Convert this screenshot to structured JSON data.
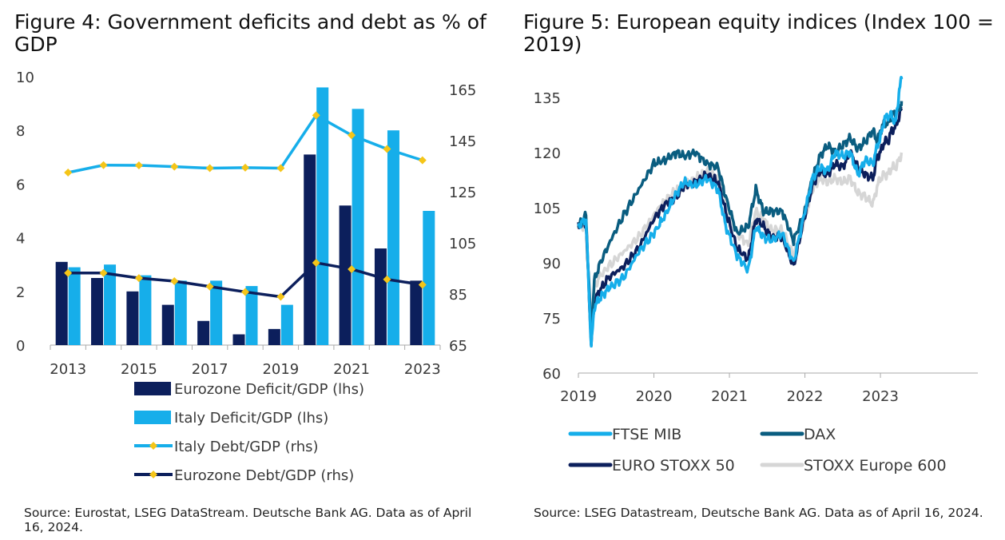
{
  "colors": {
    "navy": "#0c1f5c",
    "light_blue": "#16aeea",
    "dark_teal": "#0a5d80",
    "light_grey": "#d6d6d6",
    "marker": "#f5c518",
    "axis": "#aaaaaa"
  },
  "chart_data": [
    {
      "type": "bar",
      "title": "Figure 4: Government deficits and debt as % of GDP",
      "categories": [
        "2013",
        "2014",
        "2015",
        "2016",
        "2017",
        "2018",
        "2019",
        "2020",
        "2021",
        "2022",
        "2023"
      ],
      "x_tick_labels": [
        "2013",
        "2015",
        "2017",
        "2019",
        "2021",
        "2023"
      ],
      "y_left": {
        "lim": [
          0,
          10
        ],
        "ticks": [
          "0",
          "2",
          "4",
          "6",
          "8",
          "10"
        ]
      },
      "y_right": {
        "lim": [
          65,
          170
        ],
        "ticks": [
          "65",
          "85",
          "105",
          "125",
          "145",
          "165"
        ]
      },
      "series": [
        {
          "name": "Eurozone Deficit/GDP (lhs)",
          "kind": "bar",
          "axis": "left",
          "color": "#0c1f5c",
          "values": [
            3.1,
            2.5,
            2.0,
            1.5,
            0.9,
            0.4,
            0.6,
            7.1,
            5.2,
            3.6,
            2.4
          ]
        },
        {
          "name": "Italy Deficit/GDP (lhs)",
          "kind": "bar",
          "axis": "left",
          "color": "#16aeea",
          "values": [
            2.9,
            3.0,
            2.6,
            2.4,
            2.4,
            2.2,
            1.5,
            9.6,
            8.8,
            8.0,
            5.0
          ]
        },
        {
          "name": "Italy Debt/GDP (rhs)",
          "kind": "line",
          "axis": "right",
          "color": "#16aeea",
          "values": [
            132.5,
            135.4,
            135.3,
            134.8,
            134.2,
            134.4,
            134.2,
            154.9,
            147.1,
            141.7,
            137.3
          ]
        },
        {
          "name": "Eurozone Debt/GDP (rhs)",
          "kind": "line",
          "axis": "right",
          "color": "#0c1f5c",
          "values": [
            93.2,
            93.2,
            91.2,
            90.0,
            87.9,
            85.8,
            83.9,
            97.2,
            94.7,
            90.7,
            88.6
          ]
        }
      ],
      "source": "Source: Eurostat, LSEG DataStream. Deutsche Bank AG. Data as of April 16, 2024."
    },
    {
      "type": "line",
      "title": "Figure 5: European equity indices (Index 100 = 2019)",
      "x_tick_labels": [
        "2019",
        "2020",
        "2021",
        "2022",
        "2023"
      ],
      "xlim": [
        2019.0,
        2024.29
      ],
      "y": {
        "lim": [
          60,
          140
        ],
        "ticks": [
          "60",
          "75",
          "90",
          "105",
          "120",
          "135"
        ]
      },
      "series": [
        {
          "name": "FTSE MIB",
          "color": "#16aeea",
          "x": [
            2019.0,
            2019.1,
            2019.17,
            2019.21,
            2019.27,
            2019.4,
            2019.6,
            2019.8,
            2020.0,
            2020.15,
            2020.3,
            2020.4,
            2020.55,
            2020.7,
            2020.85,
            2020.95,
            2021.1,
            2021.25,
            2021.35,
            2021.45,
            2021.55,
            2021.7,
            2021.85,
            2022.0,
            2022.1,
            2022.2,
            2022.3,
            2022.4,
            2022.5,
            2022.6,
            2022.7,
            2022.8,
            2022.9,
            2022.96,
            2023.0,
            2023.05,
            2023.1,
            2023.15,
            2023.2,
            2023.25,
            2023.28
          ],
          "values": [
            100,
            102,
            67,
            78,
            80,
            83,
            86,
            93,
            98,
            103,
            109,
            112,
            111,
            113,
            110,
            100,
            92,
            88,
            100,
            97,
            96,
            98,
            90,
            104,
            113,
            116,
            115,
            120,
            119,
            120,
            114,
            118,
            117,
            122,
            124,
            129,
            130,
            130,
            128,
            137,
            140
          ]
        },
        {
          "name": "DAX",
          "color": "#0a5d80",
          "x": [
            2019.0,
            2019.1,
            2019.17,
            2019.21,
            2019.27,
            2019.4,
            2019.6,
            2019.8,
            2020.0,
            2020.15,
            2020.3,
            2020.4,
            2020.55,
            2020.7,
            2020.85,
            2020.95,
            2021.1,
            2021.25,
            2021.35,
            2021.45,
            2021.55,
            2021.7,
            2021.85,
            2022.0,
            2022.1,
            2022.2,
            2022.3,
            2022.4,
            2022.5,
            2022.6,
            2022.7,
            2022.8,
            2022.9,
            2022.96,
            2023.0,
            2023.05,
            2023.1,
            2023.15,
            2023.2,
            2023.25,
            2023.28
          ],
          "values": [
            100,
            103,
            70,
            85,
            89,
            95,
            103,
            110,
            117,
            118,
            120,
            119,
            120,
            117,
            116,
            108,
            98,
            100,
            110,
            104,
            104,
            104,
            96,
            104,
            113,
            119,
            122,
            120,
            122,
            124,
            121,
            123,
            126,
            123,
            126,
            128,
            128,
            130,
            131,
            132,
            134
          ]
        },
        {
          "name": "EURO STOXX 50",
          "color": "#0c1f5c",
          "x": [
            2019.0,
            2019.1,
            2019.17,
            2019.21,
            2019.27,
            2019.4,
            2019.6,
            2019.8,
            2020.0,
            2020.15,
            2020.3,
            2020.4,
            2020.55,
            2020.7,
            2020.85,
            2020.95,
            2021.1,
            2021.25,
            2021.35,
            2021.45,
            2021.55,
            2021.7,
            2021.85,
            2022.0,
            2022.1,
            2022.2,
            2022.3,
            2022.4,
            2022.5,
            2022.6,
            2022.7,
            2022.8,
            2022.9,
            2022.96,
            2023.0,
            2023.05,
            2023.1,
            2023.15,
            2023.2,
            2023.25,
            2023.28
          ],
          "values": [
            100,
            101,
            68,
            79,
            82,
            86,
            89,
            94,
            102,
            106,
            108,
            111,
            112,
            114,
            112,
            104,
            94,
            91,
            102,
            100,
            97,
            97,
            89,
            103,
            111,
            115,
            114,
            117,
            116,
            120,
            116,
            114,
            113,
            119,
            120,
            123,
            123,
            126,
            127,
            130,
            132
          ]
        },
        {
          "name": "STOXX Europe 600",
          "color": "#d6d6d6",
          "x": [
            2019.0,
            2019.1,
            2019.17,
            2019.21,
            2019.27,
            2019.4,
            2019.6,
            2019.8,
            2020.0,
            2020.15,
            2020.3,
            2020.4,
            2020.55,
            2020.7,
            2020.85,
            2020.95,
            2021.1,
            2021.25,
            2021.35,
            2021.45,
            2021.55,
            2021.7,
            2021.85,
            2022.0,
            2022.1,
            2022.2,
            2022.3,
            2022.4,
            2022.5,
            2022.6,
            2022.7,
            2022.8,
            2022.9,
            2022.96,
            2023.0,
            2023.05,
            2023.1,
            2023.15,
            2023.2,
            2023.25,
            2023.28
          ],
          "values": [
            100,
            100,
            72,
            83,
            86,
            89,
            93,
            97,
            103,
            107,
            110,
            111,
            113,
            115,
            113,
            107,
            98,
            95,
            104,
            102,
            99,
            99,
            92,
            102,
            110,
            113,
            112,
            113,
            112,
            113,
            109,
            108,
            106,
            111,
            113,
            114,
            114,
            116,
            116,
            118,
            120
          ]
        }
      ],
      "source": "Source: LSEG Datastream, Deutsche Bank AG. Data as of April 16, 2024."
    }
  ]
}
